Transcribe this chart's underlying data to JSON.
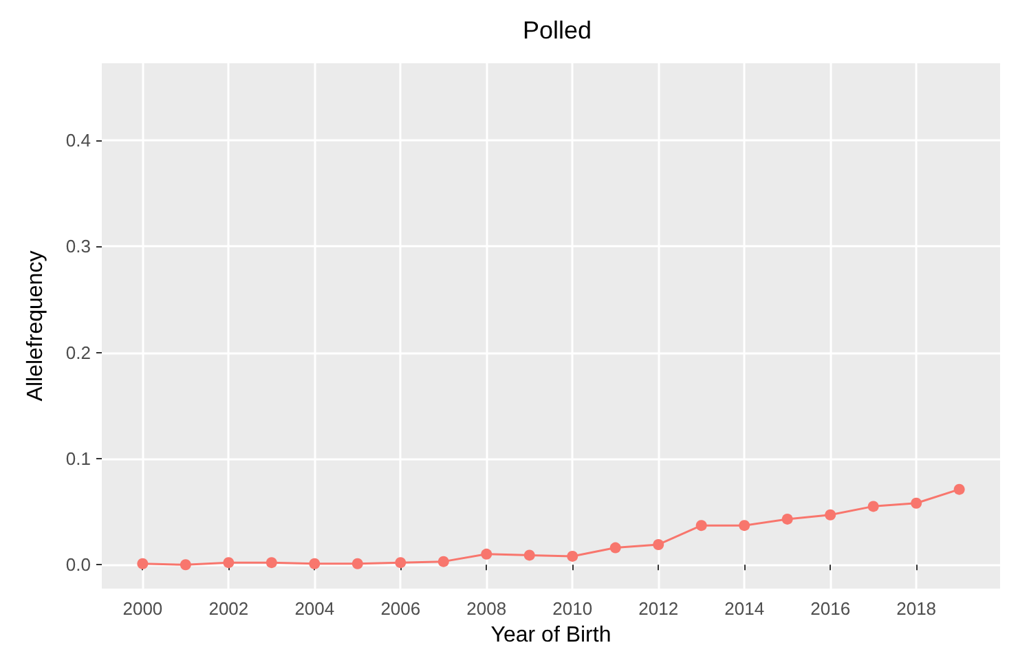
{
  "chart_data": {
    "type": "line",
    "title": "Polled",
    "xlabel": "Year of Birth",
    "ylabel": "Allelefrequency",
    "x": [
      2000,
      2001,
      2002,
      2003,
      2004,
      2005,
      2006,
      2007,
      2008,
      2009,
      2010,
      2011,
      2012,
      2013,
      2014,
      2015,
      2016,
      2017,
      2018,
      2019
    ],
    "series": [
      {
        "color": "#f8766d",
        "values": [
          0.001,
          0.0,
          0.002,
          0.002,
          0.001,
          0.001,
          0.002,
          0.003,
          0.01,
          0.009,
          0.008,
          0.016,
          0.019,
          0.037,
          0.037,
          0.043,
          0.047,
          0.055,
          0.058,
          0.071
        ]
      }
    ],
    "xlim": [
      1999.05,
      2019.95
    ],
    "xticks": [
      2000,
      2002,
      2004,
      2006,
      2008,
      2010,
      2012,
      2014,
      2016,
      2018
    ],
    "ylim": [
      -0.0225,
      0.4725
    ],
    "yticks": [
      {
        "value": 0,
        "label": "0.0"
      },
      {
        "value": 0.1,
        "label": "0.1"
      },
      {
        "value": 0.2,
        "label": "0.2"
      },
      {
        "value": 0.3,
        "label": "0.3"
      },
      {
        "value": 0.4,
        "label": "0.4"
      }
    ],
    "grid": true,
    "marker": "circle",
    "line_style": "solid"
  }
}
